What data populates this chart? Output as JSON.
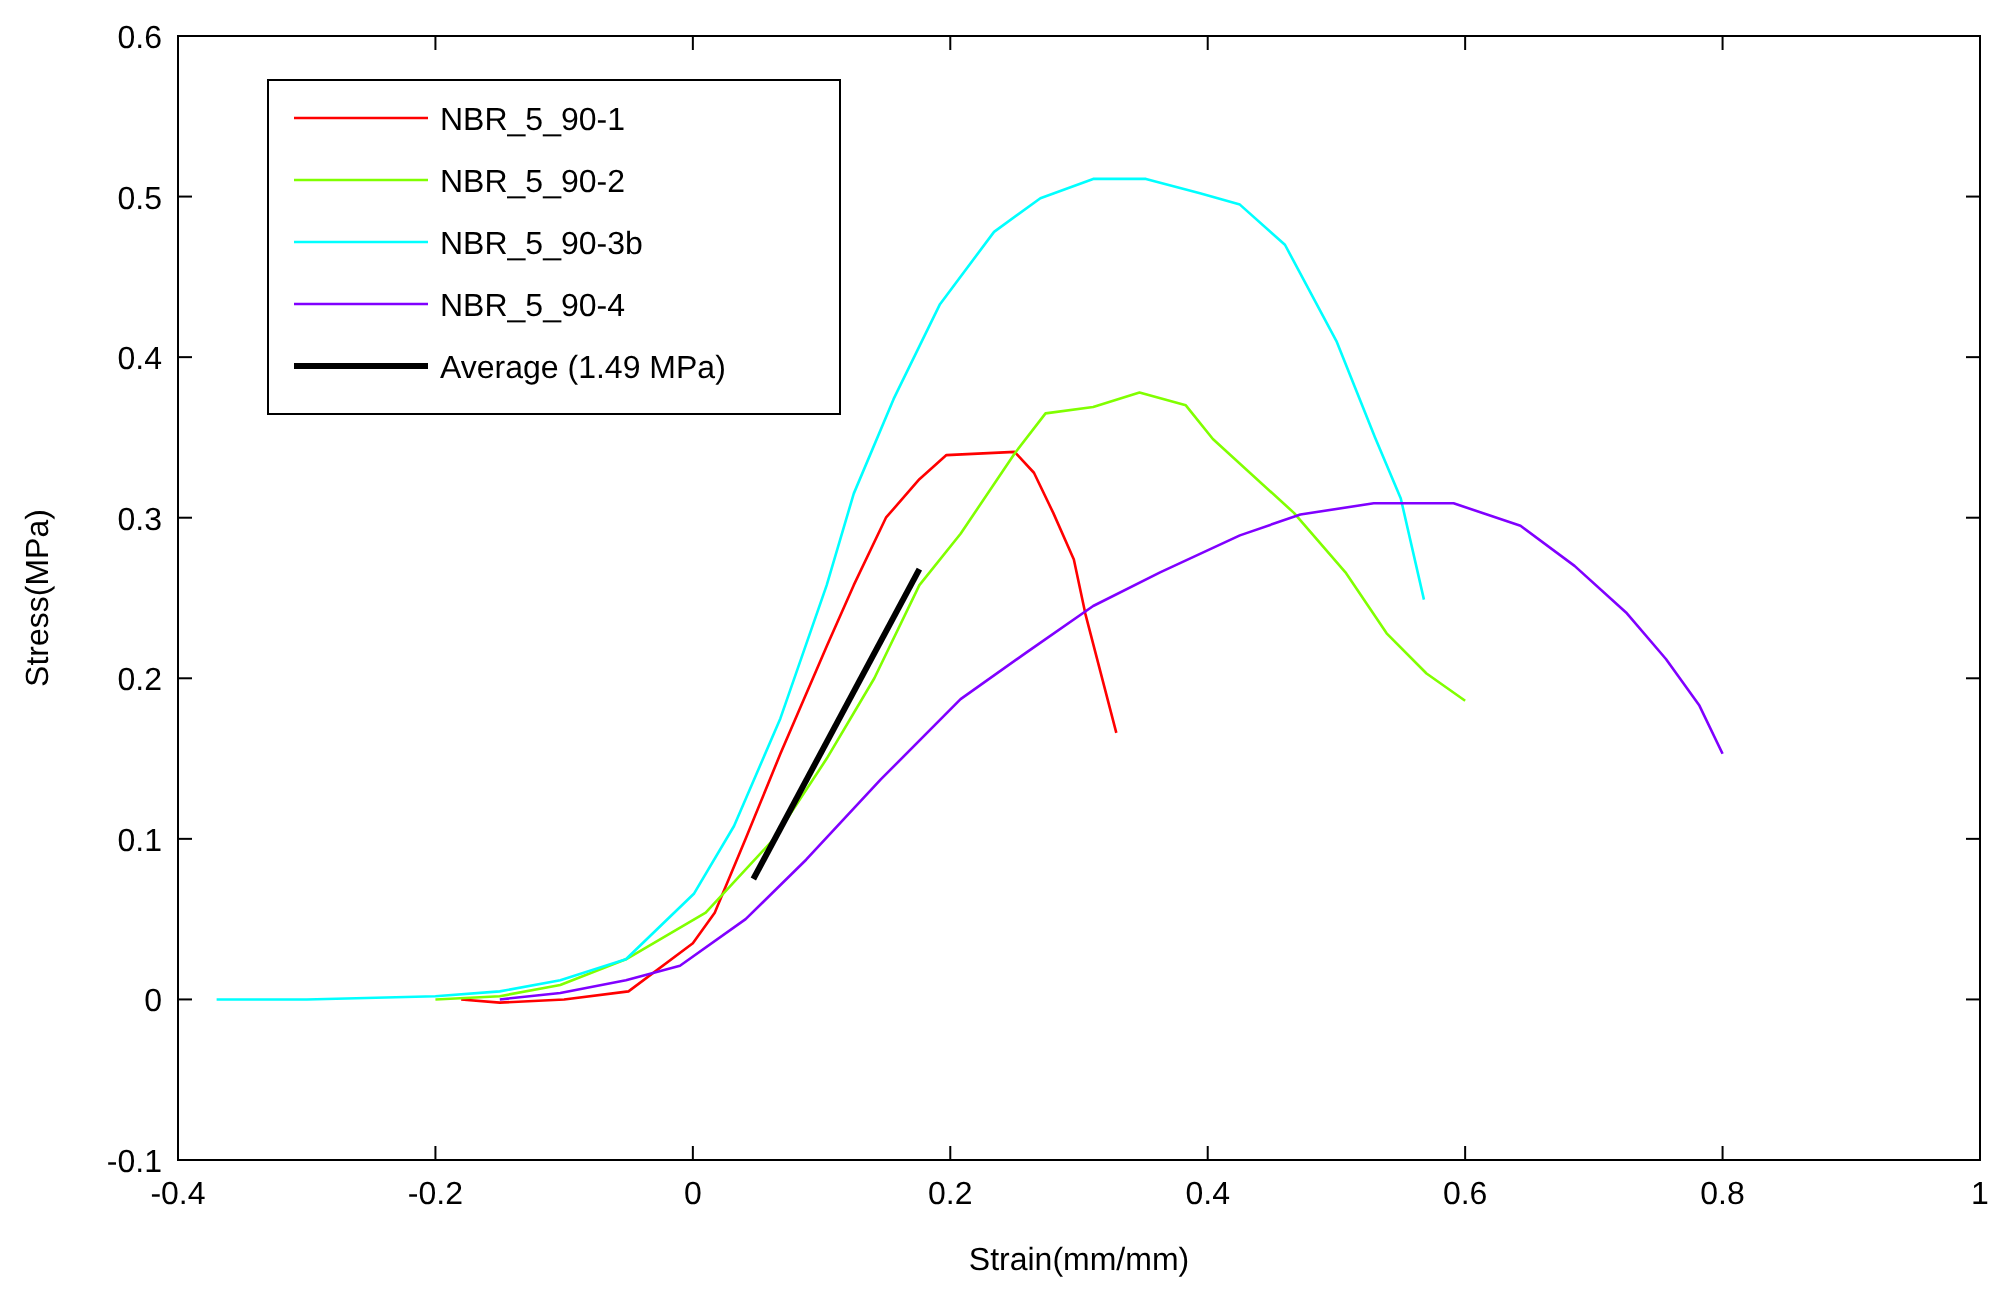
{
  "chart_data": {
    "type": "line",
    "xlabel": "Strain(mm/mm)",
    "ylabel": "Stress(MPa)",
    "xlim": [
      -0.4,
      1
    ],
    "ylim": [
      -0.1,
      0.6
    ],
    "xticks": [
      -0.4,
      -0.2,
      0,
      0.2,
      0.4,
      0.6,
      0.8,
      1
    ],
    "yticks": [
      -0.1,
      0,
      0.1,
      0.2,
      0.3,
      0.4,
      0.5,
      0.6
    ],
    "grid": false,
    "legend": "top left",
    "line_style": "solid",
    "series": [
      {
        "name": "NBR_5_90-1",
        "color": "#ff0000",
        "x": [
          -0.18,
          -0.15,
          -0.1,
          -0.05,
          0,
          0.017,
          0.041,
          0.068,
          0.104,
          0.125,
          0.15,
          0.176,
          0.197,
          0.25,
          0.265,
          0.28,
          0.296,
          0.305,
          0.329
        ],
        "values": [
          0,
          -0.002,
          0,
          0.005,
          0.035,
          0.054,
          0.1,
          0.153,
          0.22,
          0.258,
          0.3,
          0.324,
          0.339,
          0.341,
          0.328,
          0.303,
          0.274,
          0.24,
          0.166
        ]
      },
      {
        "name": "NBR_5_90-2",
        "color": "#80ff00",
        "x": [
          -0.2,
          -0.15,
          -0.103,
          -0.052,
          0.01,
          0.063,
          0.104,
          0.141,
          0.176,
          0.208,
          0.25,
          0.274,
          0.311,
          0.347,
          0.383,
          0.404,
          0.467,
          0.507,
          0.539,
          0.57,
          0.6
        ],
        "values": [
          0,
          0.002,
          0.009,
          0.025,
          0.054,
          0.1,
          0.15,
          0.2,
          0.258,
          0.29,
          0.34,
          0.365,
          0.369,
          0.378,
          0.37,
          0.349,
          0.303,
          0.266,
          0.228,
          0.203,
          0.186
        ]
      },
      {
        "name": "NBR_5_90-3b",
        "color": "#00ffff",
        "x": [
          -0.37,
          -0.3,
          -0.2,
          -0.15,
          -0.103,
          -0.052,
          0.001,
          0.032,
          0.068,
          0.104,
          0.125,
          0.156,
          0.192,
          0.234,
          0.27,
          0.311,
          0.352,
          0.394,
          0.425,
          0.46,
          0.5,
          0.53,
          0.55,
          0.568
        ],
        "values": [
          0,
          0,
          0.002,
          0.005,
          0.012,
          0.025,
          0.066,
          0.108,
          0.175,
          0.258,
          0.315,
          0.374,
          0.433,
          0.478,
          0.499,
          0.511,
          0.511,
          0.502,
          0.495,
          0.47,
          0.41,
          0.35,
          0.312,
          0.249
        ]
      },
      {
        "name": "NBR_5_90-4",
        "color": "#8000ff",
        "x": [
          -0.15,
          -0.103,
          -0.052,
          -0.01,
          0.041,
          0.088,
          0.146,
          0.208,
          0.259,
          0.311,
          0.363,
          0.425,
          0.472,
          0.529,
          0.591,
          0.643,
          0.685,
          0.725,
          0.756,
          0.782,
          0.8
        ],
        "values": [
          0,
          0.004,
          0.012,
          0.021,
          0.05,
          0.087,
          0.137,
          0.187,
          0.216,
          0.245,
          0.266,
          0.289,
          0.302,
          0.309,
          0.309,
          0.295,
          0.27,
          0.241,
          0.212,
          0.183,
          0.153
        ]
      },
      {
        "name": "Average (1.49 MPa)",
        "color": "#000000",
        "x": [
          0.047,
          0.176
        ],
        "values": [
          0.075,
          0.268
        ]
      }
    ]
  }
}
